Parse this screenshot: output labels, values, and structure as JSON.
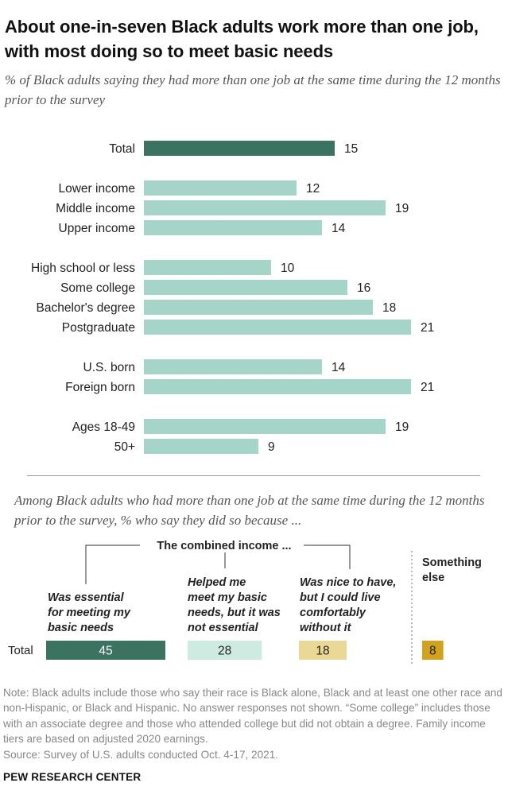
{
  "title": "About one-in-seven Black adults work more than one job, with most doing so to meet basic needs",
  "subtitle": "% of Black adults saying they had more than one job at the same time during the 12 months prior to the survey",
  "chart_data": [
    {
      "type": "bar",
      "orientation": "horizontal",
      "categories": [
        "Total",
        "Lower income",
        "Middle income",
        "Upper income",
        "High school or less",
        "Some college",
        "Bachelor's degree",
        "Postgraduate",
        "U.S. born",
        "Foreign born",
        "Ages 18-49",
        "50+"
      ],
      "groups": [
        [
          "Total"
        ],
        [
          "Lower income",
          "Middle income",
          "Upper income"
        ],
        [
          "High school or less",
          "Some college",
          "Bachelor's degree",
          "Postgraduate"
        ],
        [
          "U.S. born",
          "Foreign born"
        ],
        [
          "Ages 18-49",
          "50+"
        ]
      ],
      "values": [
        15,
        12,
        19,
        14,
        10,
        16,
        18,
        21,
        14,
        21,
        19,
        9
      ],
      "xlim": [
        0,
        21
      ],
      "colors": {
        "highlight": "#3a735f",
        "default": "#a5d5c8"
      },
      "highlight_category": "Total"
    },
    {
      "type": "bar",
      "orientation": "horizontal",
      "stacked": "separated",
      "subtitle": "Among Black adults who had more than one job at the same time during the 12 months prior to the survey, % who say they did so because ...",
      "group_header": "The combined income ...",
      "categories": [
        "Total"
      ],
      "series": [
        {
          "name": "Was essential for meeting my basic needs",
          "values": [
            45
          ],
          "color": "#3a735f",
          "text_color": "#ffffff"
        },
        {
          "name": "Helped me meet my basic needs, but it was not essential",
          "values": [
            28
          ],
          "color": "#cdebe1",
          "text_color": "#222222"
        },
        {
          "name": "Was nice to have, but I could live comfortably without it",
          "values": [
            18
          ],
          "color": "#ead994",
          "text_color": "#222222"
        },
        {
          "name": "Something else",
          "values": [
            8
          ],
          "color": "#d2a21e",
          "text_color": "#222222"
        }
      ]
    }
  ],
  "chart2_labels": [
    [
      "Was essential",
      "for meeting my",
      "basic needs"
    ],
    [
      "Helped me",
      "meet my basic",
      "needs, but it was",
      "not essential"
    ],
    [
      "Was nice to have,",
      "but I could live",
      "comfortably",
      "without it"
    ],
    [
      "Something",
      "else"
    ]
  ],
  "note": "Note: Black adults include those who say their race is Black alone, Black and at least one other race and non-Hispanic, or Black and Hispanic. No answer responses not shown. “Some college” includes those with an associate degree and those who attended college but did not obtain a degree. Family income tiers are based on adjusted 2020 earnings.",
  "source": "Source: Survey of U.S. adults conducted Oct. 4-17, 2021.",
  "brand": "PEW RESEARCH CENTER"
}
